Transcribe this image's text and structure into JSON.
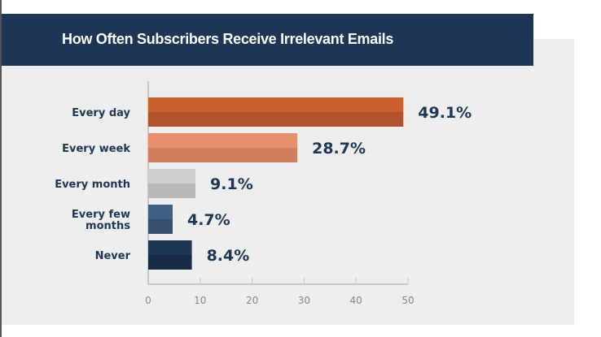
{
  "chart_data": {
    "type": "bar",
    "orientation": "horizontal",
    "title": "How Often Subscribers Receive Irrelevant Emails",
    "categories": [
      "Every day",
      "Every week",
      "Every month",
      "Every few months",
      "Never"
    ],
    "category_lines": [
      [
        "Every day"
      ],
      [
        "Every week"
      ],
      [
        "Every month"
      ],
      [
        "Every few",
        "months"
      ],
      [
        "Never"
      ]
    ],
    "values": [
      49.1,
      28.7,
      9.1,
      4.7,
      8.4
    ],
    "data_labels": [
      "49.1%",
      "28.7%",
      "9.1%",
      "4.7%",
      "8.4%"
    ],
    "colors": [
      [
        "#c95f2c",
        "#b0532a"
      ],
      [
        "#e8906b",
        "#cf7f5c"
      ],
      [
        "#cfcfcf",
        "#b9b9b9"
      ],
      [
        "#3f5f83",
        "#344f70"
      ],
      [
        "#1e3654",
        "#172b45"
      ]
    ],
    "xlim": [
      0,
      50
    ],
    "xticks": [
      0,
      10,
      20,
      30,
      40,
      50
    ],
    "xlabel": "",
    "ylabel": "",
    "grid": false,
    "legend": "none"
  }
}
